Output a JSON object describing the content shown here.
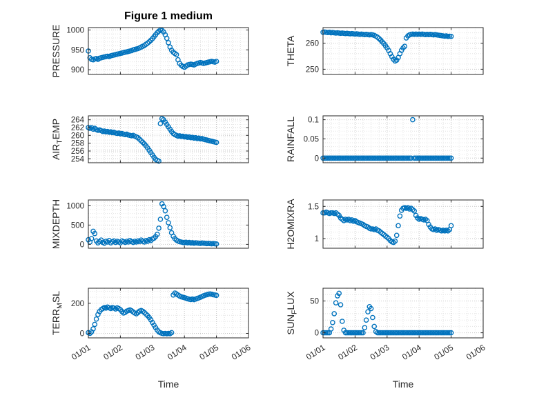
{
  "chart_data": {
    "type": "scatter",
    "figure_title": "Figure 1 medium",
    "marker_color": "#0072BD",
    "marker_style": "open-circle",
    "grid": "major+minor dotted",
    "x_axis": {
      "label": "Time",
      "lim": [
        0,
        5
      ],
      "ticks": [
        0,
        1,
        2,
        3,
        4,
        5
      ],
      "tick_labels": [
        "01/01",
        "01/02",
        "01/03",
        "01/04",
        "01/05",
        "01/06"
      ]
    },
    "subplots": [
      {
        "name": "pressure",
        "ylabel": "PRESSURE",
        "ylabel_parts": [
          {
            "t": "PRESSURE"
          }
        ],
        "ylim": [
          888,
          1006
        ],
        "yticks": [
          900,
          950,
          1000
        ],
        "ytick_labels": [
          "900",
          "950",
          "1000"
        ],
        "show_xticklabels": false,
        "x0": 0,
        "dx": 0.05,
        "y": [
          947,
          930,
          926,
          925,
          927,
          928,
          926,
          929,
          930,
          931,
          932,
          933,
          934,
          933,
          935,
          936,
          937,
          938,
          939,
          940,
          941,
          942,
          943,
          944,
          945,
          946,
          947,
          948,
          950,
          951,
          952,
          953,
          955,
          957,
          959,
          961,
          964,
          967,
          970,
          974,
          978,
          983,
          988,
          993,
          997,
          1000,
          999,
          995,
          988,
          979,
          968,
          957,
          949,
          944,
          941,
          938,
          925,
          916,
          911,
          908,
          906,
          909,
          912,
          913,
          914,
          913,
          912,
          914,
          916,
          917,
          918,
          917,
          916,
          917,
          918,
          919,
          920,
          921,
          920,
          919,
          921
        ]
      },
      {
        "name": "theta",
        "ylabel": "THETA",
        "ylabel_parts": [
          {
            "t": "THETA"
          }
        ],
        "ylim": [
          248,
          266
        ],
        "yticks": [
          250,
          260
        ],
        "ytick_labels": [
          "250",
          "260"
        ],
        "show_xticklabels": false,
        "x0": 0,
        "dx": 0.05,
        "y": [
          264.2,
          264.3,
          264.2,
          264.1,
          264.2,
          264.0,
          264.1,
          264.0,
          263.9,
          264.0,
          263.9,
          263.8,
          263.9,
          263.8,
          263.7,
          263.8,
          263.7,
          263.6,
          263.7,
          263.6,
          263.5,
          263.6,
          263.5,
          263.4,
          263.5,
          263.4,
          263.3,
          263.4,
          263.3,
          263.2,
          263.3,
          263.2,
          263.0,
          262.7,
          262.3,
          261.8,
          261.2,
          260.5,
          259.8,
          259.0,
          258.2,
          257.2,
          256.0,
          254.8,
          253.8,
          253.2,
          253.5,
          254.5,
          256.0,
          257.3,
          258.2,
          258.8,
          262.0,
          262.8,
          263.2,
          263.4,
          263.5,
          263.4,
          263.5,
          263.4,
          263.5,
          263.4,
          263.5,
          263.4,
          263.3,
          263.4,
          263.3,
          263.4,
          263.3,
          263.2,
          263.3,
          263.2,
          263.1,
          263.0,
          262.9,
          262.8,
          262.7,
          262.8,
          262.6,
          262.7,
          262.6
        ]
      },
      {
        "name": "air_temp",
        "ylabel": "AIR_TEMP",
        "ylabel_parts": [
          {
            "t": "AIR"
          },
          {
            "t": "T",
            "sub": true
          },
          {
            "t": "EMP"
          }
        ],
        "ylim": [
          253,
          265
        ],
        "yticks": [
          254,
          256,
          258,
          260,
          262,
          264
        ],
        "ytick_labels": [
          "254",
          "256",
          "258",
          "260",
          "262",
          "264"
        ],
        "show_xticklabels": false,
        "x0": 0,
        "dx": 0.05,
        "y": [
          262.0,
          261.8,
          262.0,
          261.6,
          261.8,
          261.5,
          261.3,
          261.4,
          261.2,
          261.0,
          261.1,
          260.9,
          261.0,
          260.8,
          260.9,
          260.7,
          260.8,
          260.6,
          260.5,
          260.6,
          260.4,
          260.5,
          260.3,
          260.2,
          260.3,
          260.1,
          260.0,
          259.9,
          260.0,
          259.8,
          259.6,
          259.4,
          259.0,
          258.6,
          258.2,
          257.8,
          257.3,
          256.8,
          256.2,
          255.6,
          255.0,
          254.4,
          253.9,
          253.6,
          253.4,
          263.0,
          264.3,
          264.0,
          263.4,
          262.8,
          262.2,
          261.6,
          261.0,
          260.5,
          260.2,
          260.0,
          259.8,
          259.9,
          259.7,
          259.8,
          259.6,
          259.7,
          259.5,
          259.6,
          259.4,
          259.5,
          259.3,
          259.4,
          259.2,
          259.3,
          259.1,
          259.2,
          259.0,
          258.9,
          258.8,
          258.7,
          258.6,
          258.5,
          258.4,
          258.3,
          258.2
        ]
      },
      {
        "name": "rainfall",
        "ylabel": "RAINFALL",
        "ylabel_parts": [
          {
            "t": "RAINFALL"
          }
        ],
        "ylim": [
          -0.012,
          0.11
        ],
        "yticks": [
          0,
          0.05,
          0.1
        ],
        "ytick_labels": [
          "0",
          "0.05",
          "0.1"
        ],
        "show_xticklabels": false,
        "x0": 0,
        "dx": 0.05,
        "y": [
          0,
          0,
          0,
          0,
          0,
          0,
          0,
          0,
          0,
          0,
          0,
          0,
          0,
          0,
          0,
          0,
          0,
          0,
          0,
          0,
          0,
          0,
          0,
          0,
          0,
          0,
          0,
          0,
          0,
          0,
          0,
          0,
          0,
          0,
          0,
          0,
          0,
          0,
          0,
          0,
          0,
          0,
          0,
          0,
          0,
          0,
          0,
          0,
          0,
          0,
          0,
          0,
          0,
          0,
          0,
          0,
          0.1,
          0,
          0,
          0,
          0,
          0,
          0,
          0,
          0,
          0,
          0,
          0,
          0,
          0,
          0,
          0,
          0,
          0,
          0,
          0,
          0,
          0,
          0,
          0,
          0
        ]
      },
      {
        "name": "mixdepth",
        "ylabel": "MIXDEPTH",
        "ylabel_parts": [
          {
            "t": "MIXDEPTH"
          }
        ],
        "ylim": [
          -100,
          1150
        ],
        "yticks": [
          0,
          500,
          1000
        ],
        "ytick_labels": [
          "0",
          "500",
          "1000"
        ],
        "show_xticklabels": false,
        "x0": 0,
        "dx": 0.05,
        "y": [
          120,
          60,
          150,
          340,
          280,
          90,
          40,
          70,
          110,
          50,
          30,
          80,
          60,
          100,
          40,
          70,
          90,
          50,
          80,
          60,
          40,
          90,
          70,
          50,
          80,
          60,
          100,
          70,
          50,
          80,
          60,
          90,
          70,
          110,
          80,
          60,
          100,
          80,
          120,
          100,
          140,
          160,
          200,
          260,
          420,
          650,
          1050,
          980,
          870,
          700,
          560,
          430,
          300,
          210,
          150,
          110,
          90,
          70,
          60,
          50,
          45,
          55,
          40,
          50,
          35,
          45,
          30,
          40,
          35,
          30,
          25,
          35,
          30,
          25,
          20,
          25,
          20,
          15,
          20,
          15,
          10
        ]
      },
      {
        "name": "h2omixra",
        "ylabel": "H2OMIXRA",
        "ylabel_parts": [
          {
            "t": "H2OMIXRA"
          }
        ],
        "ylim": [
          0.85,
          1.6
        ],
        "yticks": [
          1,
          1.5
        ],
        "ytick_labels": [
          "1",
          "1.5"
        ],
        "show_xticklabels": false,
        "x0": 0,
        "dx": 0.05,
        "y": [
          1.4,
          1.4,
          1.41,
          1.4,
          1.39,
          1.4,
          1.4,
          1.39,
          1.4,
          1.38,
          1.36,
          1.32,
          1.3,
          1.28,
          1.3,
          1.29,
          1.3,
          1.28,
          1.29,
          1.27,
          1.28,
          1.26,
          1.25,
          1.24,
          1.23,
          1.22,
          1.2,
          1.19,
          1.18,
          1.16,
          1.15,
          1.15,
          1.14,
          1.15,
          1.13,
          1.12,
          1.1,
          1.08,
          1.06,
          1.04,
          1.02,
          1.0,
          0.97,
          0.95,
          0.94,
          0.96,
          1.05,
          1.2,
          1.35,
          1.44,
          1.47,
          1.48,
          1.47,
          1.48,
          1.46,
          1.47,
          1.45,
          1.43,
          1.36,
          1.32,
          1.3,
          1.31,
          1.3,
          1.29,
          1.3,
          1.28,
          1.22,
          1.18,
          1.15,
          1.14,
          1.15,
          1.13,
          1.14,
          1.13,
          1.12,
          1.13,
          1.12,
          1.13,
          1.12,
          1.14,
          1.2
        ]
      },
      {
        "name": "terr_msl",
        "ylabel": "TERR_MSL",
        "ylabel_parts": [
          {
            "t": "TERR"
          },
          {
            "t": "M",
            "sub": true
          },
          {
            "t": "SL"
          }
        ],
        "ylim": [
          -30,
          300
        ],
        "yticks": [
          0,
          200
        ],
        "ytick_labels": [
          "0",
          "200"
        ],
        "show_xticklabels": true,
        "x0": 0,
        "dx": 0.05,
        "y": [
          5,
          0,
          10,
          30,
          60,
          95,
          125,
          145,
          158,
          165,
          172,
          168,
          175,
          170,
          165,
          172,
          168,
          162,
          170,
          165,
          158,
          145,
          135,
          140,
          148,
          152,
          156,
          150,
          142,
          135,
          130,
          138,
          148,
          152,
          146,
          138,
          128,
          118,
          105,
          90,
          72,
          55,
          38,
          22,
          10,
          4,
          0,
          -2,
          0,
          -3,
          0,
          -2,
          5,
          255,
          268,
          262,
          255,
          248,
          243,
          240,
          237,
          234,
          230,
          227,
          225,
          228,
          224,
          228,
          232,
          236,
          240,
          245,
          250,
          254,
          257,
          260,
          262,
          260,
          257,
          255,
          253
        ]
      },
      {
        "name": "sun_flux",
        "ylabel": "SUN_FLUX",
        "ylabel_parts": [
          {
            "t": "SUN"
          },
          {
            "t": "F",
            "sub": true
          },
          {
            "t": "LUX"
          }
        ],
        "ylim": [
          -8,
          70
        ],
        "yticks": [
          0,
          50
        ],
        "ytick_labels": [
          "0",
          "50"
        ],
        "show_xticklabels": true,
        "x0": 0,
        "dx": 0.05,
        "y": [
          0,
          0,
          0,
          0,
          0,
          6,
          16,
          30,
          47,
          58,
          62,
          44,
          18,
          4,
          0,
          0,
          0,
          0,
          0,
          0,
          0,
          0,
          0,
          0,
          0,
          0,
          8,
          20,
          33,
          41,
          38,
          24,
          10,
          2,
          0,
          0,
          0,
          0,
          0,
          0,
          0,
          0,
          0,
          0,
          0,
          0,
          0,
          0,
          0,
          0,
          0,
          0,
          0,
          0,
          0,
          0,
          0,
          0,
          0,
          0,
          0,
          0,
          0,
          0,
          0,
          0,
          0,
          0,
          0,
          0,
          0,
          0,
          0,
          0,
          0,
          0,
          0,
          0,
          0,
          0,
          0
        ]
      }
    ]
  }
}
